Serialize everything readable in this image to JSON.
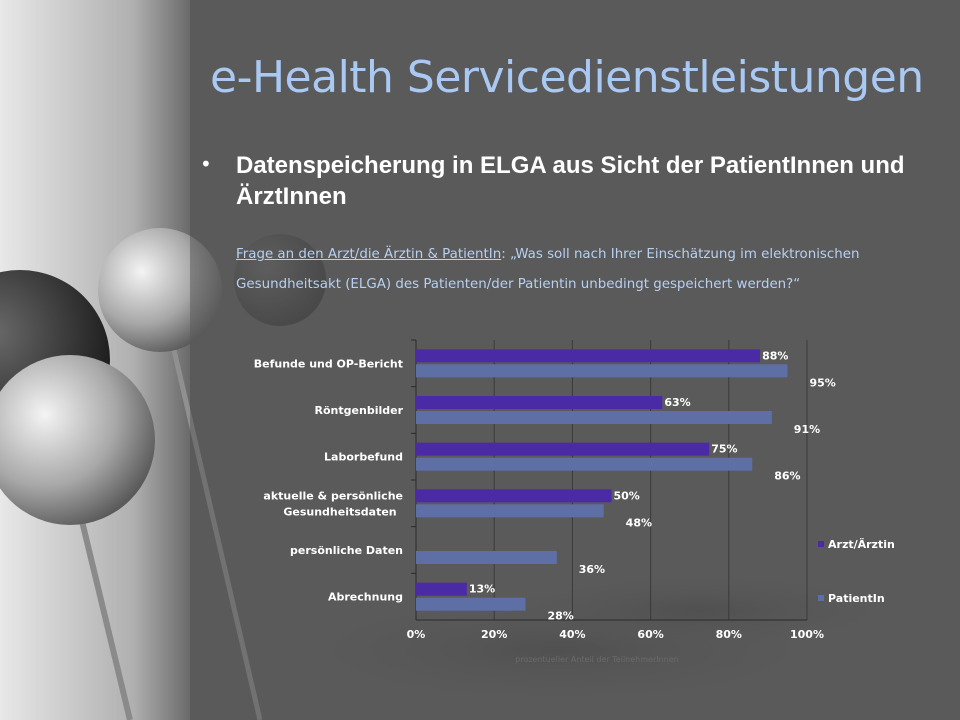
{
  "slide": {
    "title": "e-Health Servicedienstleistungen",
    "bullet_glyph": "•",
    "subtitle": "Datenspeicherung in ELGA aus Sicht der PatientInnen und ÄrztInnen",
    "question_link": "Frage an den Arzt/die Ärztin & PatientIn",
    "question_text": ": „Was soll nach Ihrer Einschätzung im elektronischen Gesundheitsakt (ELGA) des Patienten/der Patientin unbedingt gespeichert werden?“"
  },
  "colors": {
    "title": "#a9c8f2",
    "arzt": "#4b2aa6",
    "patient": "#5e6fa6",
    "label_text": "#ffffff"
  },
  "chart_data": {
    "type": "bar",
    "orientation": "horizontal",
    "categories": [
      "Befunde und OP-Bericht",
      "Röntgenbilder",
      "Laborbefund",
      "aktuelle & persönliche Gesundheitsdaten",
      "persönliche Daten",
      "Abrechnung"
    ],
    "series": [
      {
        "name": "Arzt/Ärztin",
        "values": [
          88,
          63,
          75,
          50,
          null,
          13
        ],
        "labels": [
          "88%",
          "63%",
          "75%",
          "50%",
          "",
          "13%"
        ]
      },
      {
        "name": "PatientIn",
        "values": [
          95,
          91,
          86,
          48,
          36,
          28
        ],
        "labels": [
          "95%",
          "91%",
          "86%",
          "48%",
          "36%",
          "28%"
        ]
      }
    ],
    "xlim": [
      0,
      100
    ],
    "x_ticks": [
      "0%",
      "20%",
      "40%",
      "60%",
      "80%",
      "100%"
    ],
    "xlabel": "prozentueller Anteil der TeilnehmerInnen",
    "grid": true,
    "legend_position": "right"
  }
}
